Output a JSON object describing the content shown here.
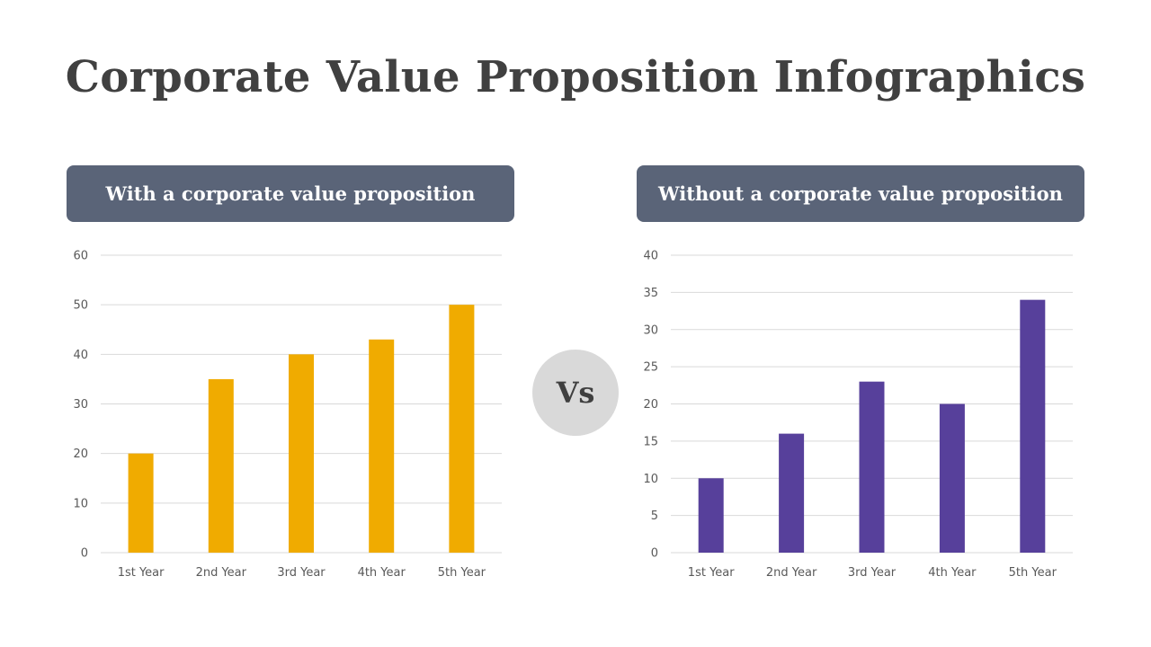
{
  "title": "Corporate Value Proposition Infographics",
  "left_panel": {
    "header": "With a corporate value proposition"
  },
  "right_panel": {
    "header": "Without a corporate value proposition"
  },
  "vs_label": "Vs",
  "colors": {
    "header_bg": "#5a6478",
    "left_bars": "#f0ab00",
    "right_bars": "#57409b",
    "gridline": "#d9d9d9",
    "vs_bg": "#d9d9d9"
  },
  "chart_data": [
    {
      "type": "bar",
      "categories": [
        "1st Year",
        "2nd Year",
        "3rd Year",
        "4th Year",
        "5th Year"
      ],
      "values": [
        20,
        35,
        40,
        43,
        50
      ],
      "ylim": [
        0,
        60
      ],
      "yticks": [
        0,
        10,
        20,
        30,
        40,
        50,
        60
      ],
      "grid": true,
      "color": "#f0ab00"
    },
    {
      "type": "bar",
      "categories": [
        "1st Year",
        "2nd Year",
        "3rd Year",
        "4th Year",
        "5th Year"
      ],
      "values": [
        10,
        16,
        23,
        20,
        34
      ],
      "ylim": [
        0,
        40
      ],
      "yticks": [
        0,
        5,
        10,
        15,
        20,
        25,
        30,
        35,
        40
      ],
      "grid": true,
      "color": "#57409b"
    }
  ]
}
